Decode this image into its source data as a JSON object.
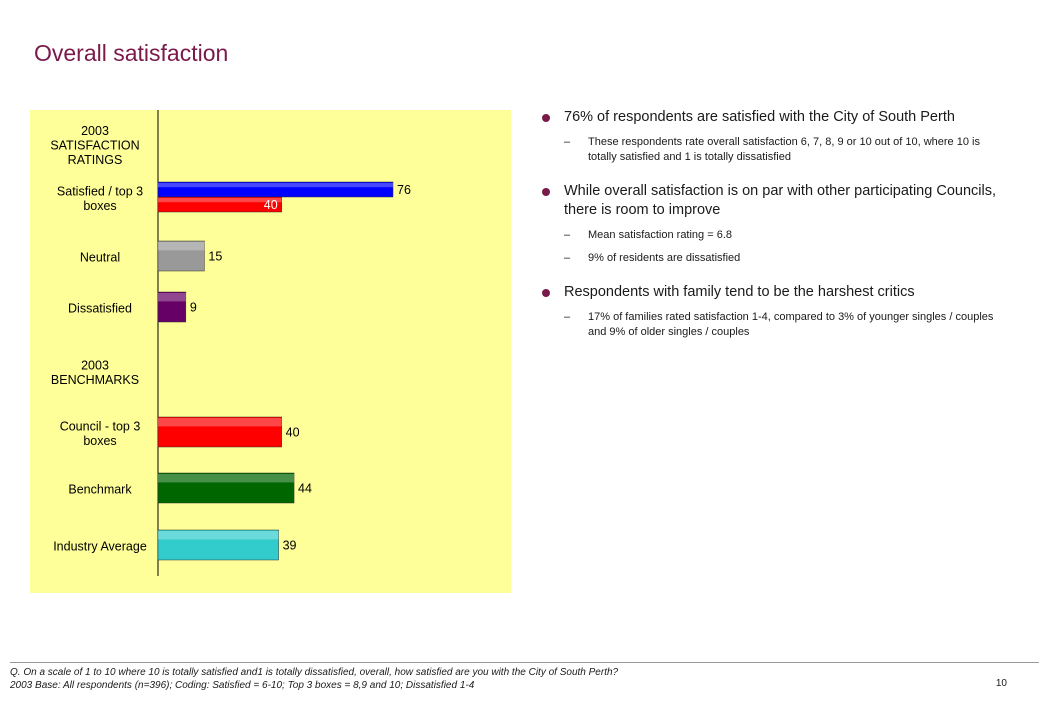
{
  "page": {
    "title": "Overall satisfaction",
    "page_number": "10"
  },
  "bullets": [
    {
      "text": "76% of respondents are satisfied with the City of South Perth",
      "subs": [
        "These respondents rate overall satisfaction 6, 7, 8, 9 or 10 out of 10, where 10 is totally satisfied and 1 is totally dissatisfied"
      ]
    },
    {
      "text": "While overall satisfaction is on par with other participating Councils, there is room to improve",
      "subs": [
        "Mean satisfaction rating = 6.8",
        "9% of residents are dissatisfied"
      ]
    },
    {
      "text": "Respondents with family tend to be the harshest critics",
      "subs": [
        "17% of families rated satisfaction 1-4, compared to 3% of younger singles / couples and 9% of older singles / couples"
      ]
    }
  ],
  "footnote": {
    "line1": "Q. On a scale of 1 to 10 where 10 is totally satisfied and1 is totally dissatisfied, overall, how satisfied are you with the City of South Perth?",
    "line2": "2003 Base: All respondents (n=396); Coding: Satisfied = 6-10; Top 3 boxes = 8,9 and 10; Dissatisfied 1-4"
  },
  "chart_data": {
    "type": "bar",
    "orientation": "horizontal",
    "xlim": [
      0,
      100
    ],
    "panel_color": "#ffff99",
    "sections": [
      {
        "label": [
          "2003",
          "SATISFACTION",
          "RATINGS"
        ]
      },
      {
        "label": [
          "2003",
          "BENCHMARKS"
        ]
      }
    ],
    "categories": [
      {
        "label": [
          "Satisfied / top 3",
          "boxes"
        ],
        "bars": [
          {
            "value": 76,
            "color": "#0000ff",
            "label_inside": false
          },
          {
            "value": 40,
            "color": "#ff0000",
            "label_inside": true
          }
        ]
      },
      {
        "label": [
          "Neutral"
        ],
        "bars": [
          {
            "value": 15,
            "color": "#999999",
            "label_inside": false
          }
        ]
      },
      {
        "label": [
          "Dissatisfied"
        ],
        "bars": [
          {
            "value": 9,
            "color": "#660066",
            "label_inside": false
          }
        ]
      },
      {
        "label": [
          "Council - top 3",
          "boxes"
        ],
        "bars": [
          {
            "value": 40,
            "color": "#ff0000",
            "label_inside": false
          }
        ]
      },
      {
        "label": [
          "Benchmark"
        ],
        "bars": [
          {
            "value": 44,
            "color": "#006600",
            "label_inside": false
          }
        ]
      },
      {
        "label": [
          "Industry Average"
        ],
        "bars": [
          {
            "value": 39,
            "color": "#33cccc",
            "label_inside": false
          }
        ]
      }
    ]
  }
}
